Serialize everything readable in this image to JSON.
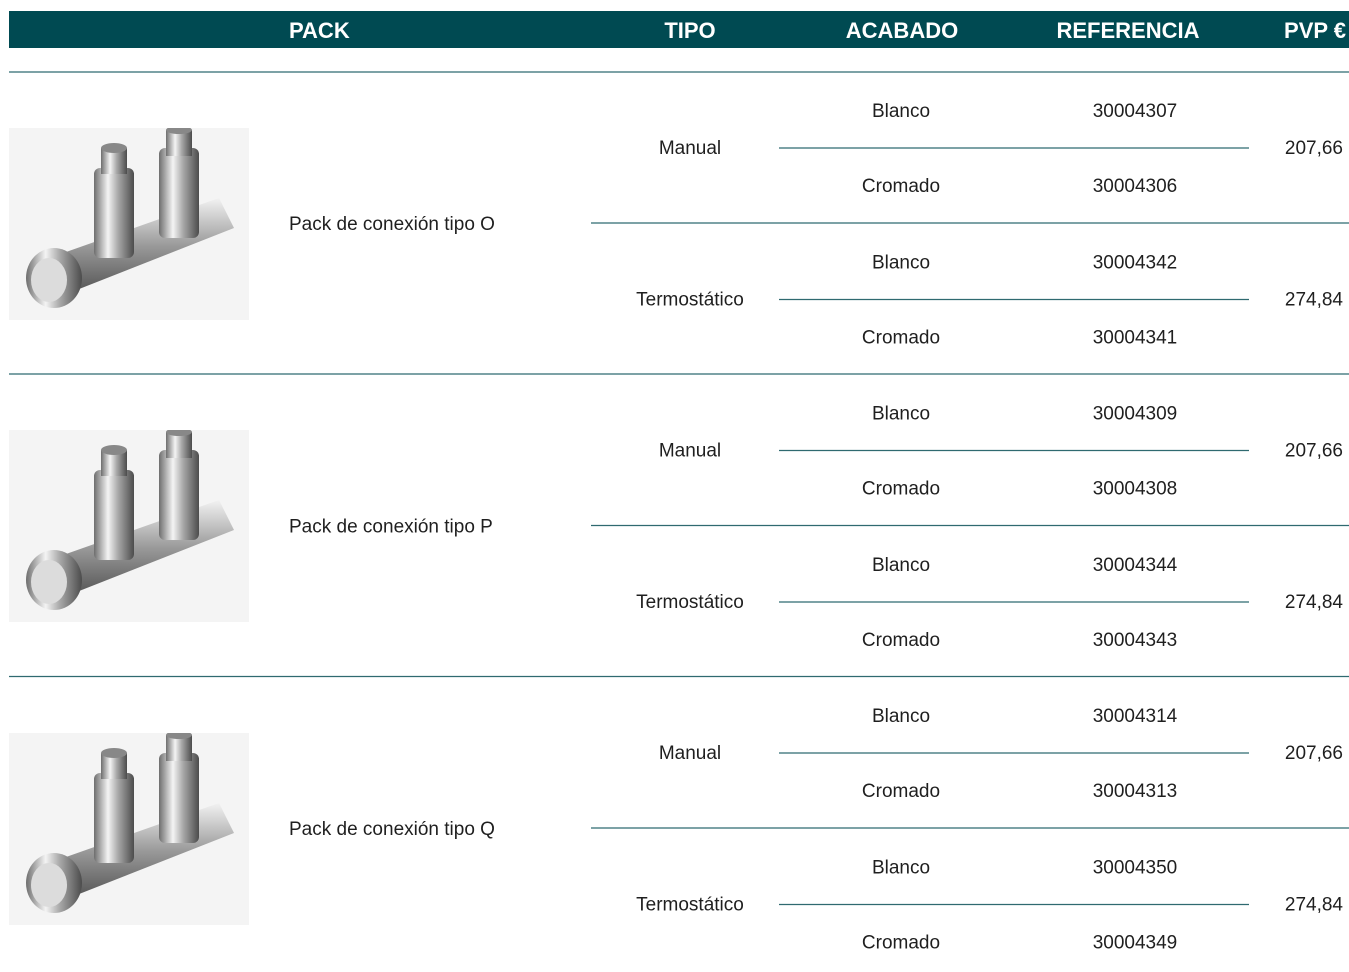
{
  "header": [
    "PACK",
    "TIPO",
    "ACABADO",
    "REFERENCIA",
    "PVP €"
  ],
  "packs": [
    {
      "name": "Pack de conexión tipo O",
      "types": [
        {
          "tipo": "Manual",
          "price": "207,66",
          "variants": [
            {
              "acabado": "Blanco",
              "referencia": "30004307"
            },
            {
              "acabado": "Cromado",
              "referencia": "30004306"
            }
          ]
        },
        {
          "tipo": "Termostático",
          "price": "274,84",
          "variants": [
            {
              "acabado": "Blanco",
              "referencia": "30004342"
            },
            {
              "acabado": "Cromado",
              "referencia": "30004341"
            }
          ]
        }
      ]
    },
    {
      "name": "Pack de conexión tipo P",
      "types": [
        {
          "tipo": "Manual",
          "price": "207,66",
          "variants": [
            {
              "acabado": "Blanco",
              "referencia": "30004309"
            },
            {
              "acabado": "Cromado",
              "referencia": "30004308"
            }
          ]
        },
        {
          "tipo": "Termostático",
          "price": "274,84",
          "variants": [
            {
              "acabado": "Blanco",
              "referencia": "30004344"
            },
            {
              "acabado": "Cromado",
              "referencia": "30004343"
            }
          ]
        }
      ]
    },
    {
      "name": "Pack de conexión tipo Q",
      "types": [
        {
          "tipo": "Manual",
          "price": "207,66",
          "variants": [
            {
              "acabado": "Blanco",
              "referencia": "30004314"
            },
            {
              "acabado": "Cromado",
              "referencia": "30004313"
            }
          ]
        },
        {
          "tipo": "Termostático",
          "price": "274,84",
          "variants": [
            {
              "acabado": "Blanco",
              "referencia": "30004350"
            },
            {
              "acabado": "Cromado",
              "referencia": "30004349"
            }
          ]
        }
      ]
    }
  ]
}
